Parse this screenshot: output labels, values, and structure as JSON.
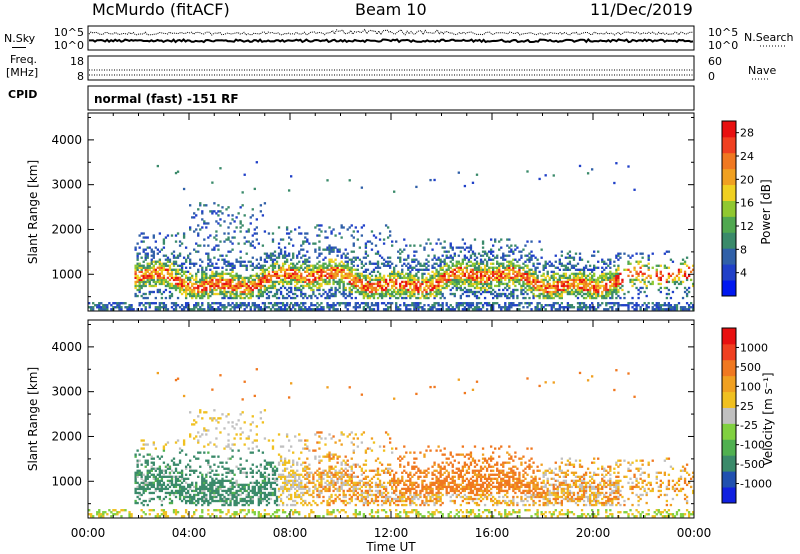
{
  "header": {
    "station": "McMurdo (fitACF)",
    "beam": "Beam 10",
    "date": "11/Dec/2019"
  },
  "noise_panel": {
    "left_label": "N.Sky",
    "right_label": "N.Search",
    "ticks_left": [
      "10^5",
      "10^0"
    ],
    "ticks_right": [
      "10^5",
      "10^0"
    ]
  },
  "freq_panel": {
    "left_label_1": "Freq.",
    "left_label_2": "[MHz]",
    "right_label": "Nave",
    "ticks_left": [
      "18",
      "8"
    ],
    "ticks_right": [
      "60",
      "0"
    ]
  },
  "cpid": {
    "label": "CPID",
    "value": "normal (fast) -151 RF"
  },
  "chart_data": [
    {
      "type": "heatmap",
      "name": "power",
      "ylabel": "Slant Range [km]",
      "ylim": [
        180,
        4600
      ],
      "yticks": [
        "1000",
        "2000",
        "3000",
        "4000"
      ],
      "xlabel": "Time UT",
      "xticks": [
        "00:00",
        "04:00",
        "08:00",
        "12:00",
        "16:00",
        "20:00",
        "00:00"
      ],
      "colorbar": {
        "label": "Power [dB]",
        "ticks": [
          "4",
          "8",
          "12",
          "16",
          "20",
          "24",
          "28"
        ],
        "colors": [
          "#0018f0",
          "#2040c8",
          "#3060a8",
          "#3a8a6a",
          "#50a850",
          "#90c830",
          "#f0d020",
          "#f0a020",
          "#f07820",
          "#f04020",
          "#e81010"
        ]
      }
    },
    {
      "type": "heatmap",
      "name": "velocity",
      "ylabel": "Slant Range [km]",
      "ylim": [
        180,
        4600
      ],
      "yticks": [
        "1000",
        "2000",
        "3000",
        "4000"
      ],
      "xlabel": "Time UT",
      "xticks": [
        "00:00",
        "04:00",
        "08:00",
        "12:00",
        "16:00",
        "20:00",
        "00:00"
      ],
      "colorbar": {
        "label": "Velocity [m s⁻¹]",
        "ticks": [
          "1000",
          "500",
          "100",
          "25",
          "-25",
          "-100",
          "-500",
          "-1000"
        ],
        "colors": [
          "#1020e0",
          "#2050b0",
          "#3a8a6a",
          "#50b050",
          "#80d040",
          "#c0c0c0",
          "#f0c020",
          "#f0a020",
          "#f07820",
          "#f04020",
          "#e81010"
        ]
      }
    }
  ]
}
